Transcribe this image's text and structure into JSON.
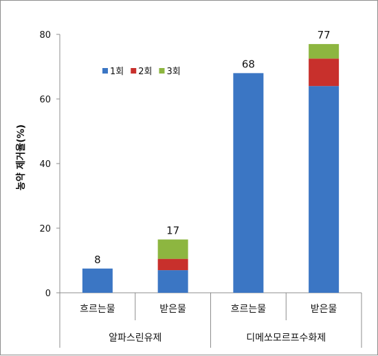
{
  "chart_data": {
    "type": "bar",
    "stacked": true,
    "groups": [
      "알파스린유제",
      "디메쏘모르프수화제"
    ],
    "categories": [
      "흐르는물",
      "받은물",
      "흐르는물",
      "받은물"
    ],
    "category_group": [
      0,
      0,
      1,
      1
    ],
    "series": [
      {
        "name": "1회",
        "color": "#3b76c4",
        "values": [
          7.5,
          7,
          68,
          64
        ]
      },
      {
        "name": "2회",
        "color": "#c8302c",
        "values": [
          0,
          3.5,
          0,
          8.5
        ]
      },
      {
        "name": "3회",
        "color": "#8db640",
        "values": [
          0,
          6,
          0,
          4.5
        ]
      }
    ],
    "totals": [
      "8",
      "17",
      "68",
      "77"
    ],
    "ylabel": "농약 제거율(%)",
    "ylim": [
      0,
      80
    ],
    "yticks": [
      "0",
      "20",
      "40",
      "60",
      "80"
    ],
    "grid": false,
    "legend_position": "top-left inside plot"
  }
}
